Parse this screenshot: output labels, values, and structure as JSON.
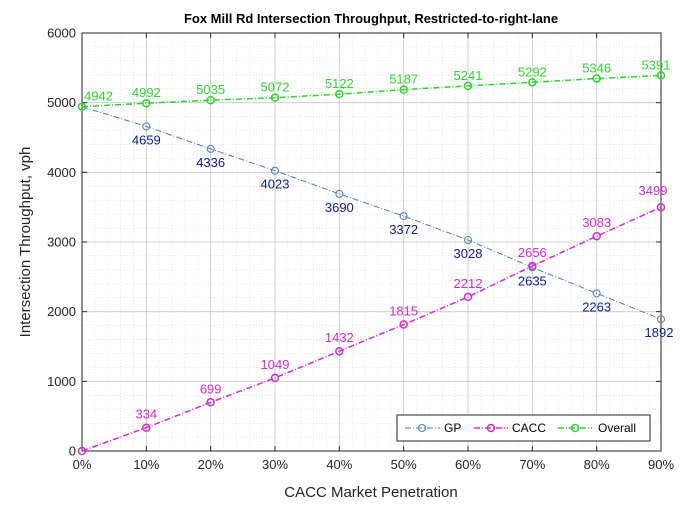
{
  "chart_data": {
    "type": "line",
    "title": "Fox Mill Rd Intersection Throughput, Restricted-to-right-lane",
    "xlabel": "CACC Market Penetration",
    "ylabel": "Intersection Throughput, vph",
    "categories": [
      "0%",
      "10%",
      "20%",
      "30%",
      "40%",
      "50%",
      "60%",
      "70%",
      "80%",
      "90%"
    ],
    "x": [
      0,
      10,
      20,
      30,
      40,
      50,
      60,
      70,
      80,
      90
    ],
    "xlim": [
      0,
      90
    ],
    "ylim": [
      0,
      6000
    ],
    "yticks": [
      0,
      1000,
      2000,
      3000,
      4000,
      5000,
      6000
    ],
    "grid": true,
    "legend_position": "bottom-right",
    "series": [
      {
        "name": "GP",
        "values": [
          4942,
          4659,
          4336,
          4023,
          3690,
          3372,
          3028,
          2635,
          2263,
          1892
        ],
        "labels": [
          "",
          "4659",
          "4336",
          "4023",
          "3690",
          "3372",
          "3028",
          "2635",
          "2263",
          "1892"
        ],
        "line_color": "#4a7ebb",
        "label_color": "#0b1d96",
        "style": "dash-dot"
      },
      {
        "name": "CACC",
        "values": [
          0,
          334,
          699,
          1049,
          1432,
          1815,
          2212,
          2656,
          3083,
          3499
        ],
        "labels": [
          "",
          "334",
          "699",
          "1049",
          "1432",
          "1815",
          "2212",
          "2656",
          "3083",
          "3499"
        ],
        "line_color": "#d62ad6",
        "label_color": "#d62ad6",
        "style": "dash-dot"
      },
      {
        "name": "Overall",
        "values": [
          4942,
          4992,
          5035,
          5072,
          5122,
          5187,
          5241,
          5292,
          5346,
          5391
        ],
        "labels": [
          "4942",
          "4992",
          "5035",
          "5072",
          "5122",
          "5187",
          "5241",
          "5292",
          "5346",
          "5391"
        ],
        "line_color": "#2fd42f",
        "label_color": "#2fd42f",
        "style": "dash-dot"
      }
    ]
  }
}
